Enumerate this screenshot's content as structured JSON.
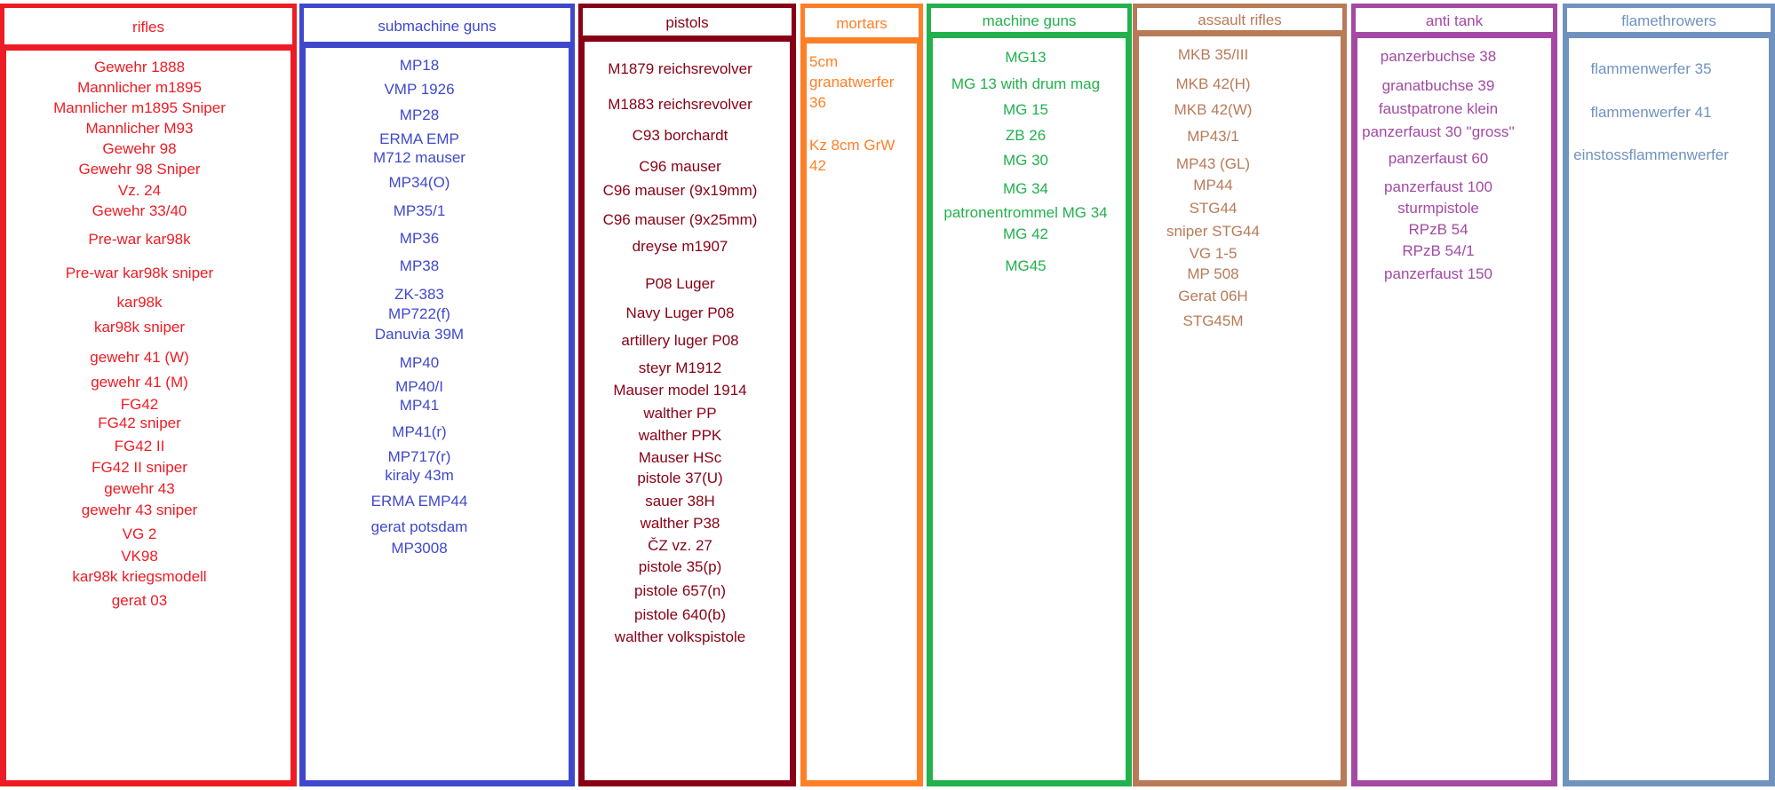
{
  "columns": [
    {
      "id": "rifles",
      "title": "rifles",
      "color": "#ed1c24",
      "items": [
        "Gewehr 1888",
        "Mannlicher m1895",
        "Mannlicher m1895 Sniper",
        "Mannlicher M93",
        "Gewehr 98",
        "Gewehr 98 Sniper",
        "Vz. 24",
        "Gewehr 33/40",
        "Pre-war kar98k",
        "Pre-war kar98k sniper",
        "kar98k",
        "kar98k sniper",
        "gewehr 41 (W)",
        "gewehr 41 (M)",
        "FG42",
        "FG42 sniper",
        "FG42 II",
        "FG42 II sniper",
        "gewehr 43",
        "gewehr 43 sniper",
        "VG 2",
        "VK98",
        "kar98k kriegsmodell",
        "gerat 03"
      ]
    },
    {
      "id": "submachine-guns",
      "title": "submachine guns",
      "color": "#3f48cc",
      "items": [
        "MP18",
        "VMP 1926",
        "MP28",
        "ERMA EMP",
        "M712 mauser",
        "MP34(O)",
        "MP35/1",
        "MP36",
        "MP38",
        "ZK-383",
        "MP722(f)",
        "Danuvia 39M",
        "MP40",
        "MP40/I",
        "MP41",
        "MP41(r)",
        "MP717(r)",
        "kiraly 43m",
        "ERMA EMP44",
        "gerat potsdam",
        "MP3008"
      ]
    },
    {
      "id": "pistols",
      "title": "pistols",
      "color": "#880015",
      "items": [
        "M1879 reichsrevolver",
        "M1883 reichsrevolver",
        "C93 borchardt",
        "C96 mauser",
        "C96 mauser (9x19mm)",
        "C96 mauser (9x25mm)",
        "dreyse m1907",
        "P08 Luger",
        "Navy Luger P08",
        "artillery luger P08",
        "steyr M1912",
        "Mauser model 1914",
        "walther PP",
        "walther PPK",
        "Mauser HSc",
        "pistole 37(U)",
        "sauer 38H",
        "walther P38",
        "ČZ vz. 27",
        "pistole 35(p)",
        "pistole 657(n)",
        "pistole 640(b)",
        "walther volkspistole"
      ]
    },
    {
      "id": "mortars",
      "title": "mortars",
      "color": "#ff7f27",
      "items": [
        "5cm granatwerfer 36",
        "Kz 8cm GrW 42"
      ]
    },
    {
      "id": "machine-guns",
      "title": "machine guns",
      "color": "#22b14c",
      "items": [
        "MG13",
        "MG 13 with drum mag",
        "MG 15",
        "ZB 26",
        "MG 30",
        "MG 34",
        "patronentrommel MG 34",
        "MG 42",
        "MG45"
      ]
    },
    {
      "id": "assault-rifles",
      "title": "assault rifles",
      "color": "#b97a57",
      "items": [
        "MKB 35/III",
        "MKB 42(H)",
        "MKB 42(W)",
        "MP43/1",
        "MP43 (GL)",
        "MP44",
        "STG44",
        "sniper STG44",
        "VG 1-5",
        "MP 508",
        "Gerat 06H",
        "STG45M"
      ]
    },
    {
      "id": "anti-tank",
      "title": "anti tank",
      "color": "#a349a4",
      "items": [
        "panzerbuchse 38",
        "granatbuchse 39",
        "faustpatrone klein",
        "panzerfaust 30 ''gross''",
        "panzerfaust 60",
        "panzerfaust 100",
        "sturmpistole",
        "RPzB 54",
        "RPzB 54/1",
        "panzerfaust 150"
      ]
    },
    {
      "id": "flamethrowers",
      "title": "flamethrowers",
      "color": "#7092be",
      "items": [
        "flammenwerfer 35",
        "flammenwerfer 41",
        "einstossflammenwerfer"
      ]
    }
  ]
}
